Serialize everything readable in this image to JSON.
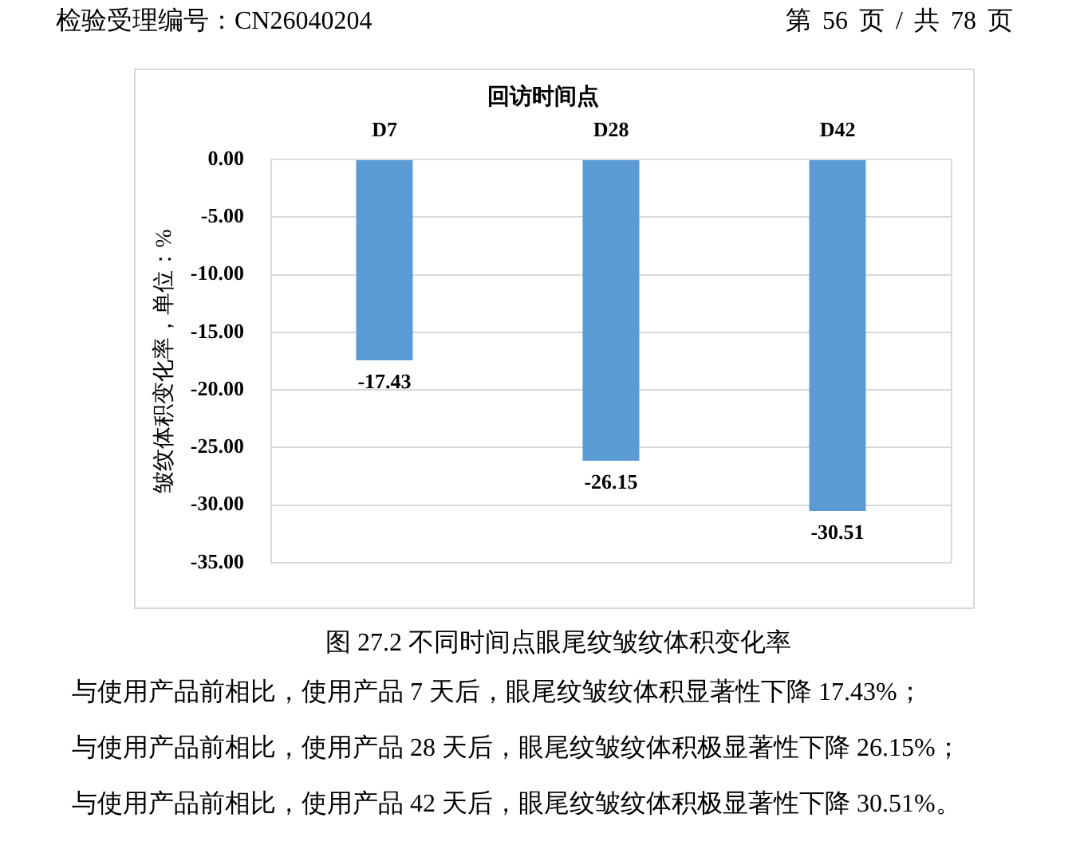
{
  "chart_data": {
    "type": "bar",
    "title": "图 27.2 不同时间点眼尾纹皱纹体积变化率",
    "xlabel": "回访时间点",
    "ylabel": "皱纹体积变化率，单位：%",
    "categories": [
      "D7",
      "D28",
      "D42"
    ],
    "values": [
      -17.43,
      -26.15,
      -30.51
    ],
    "color": "#5b9bd5",
    "ylim": [
      -35,
      0
    ],
    "yticks": [
      {
        "value": 0,
        "label": "0.00"
      },
      {
        "value": -5,
        "label": "-5.00"
      },
      {
        "value": -10,
        "label": "-10.00"
      },
      {
        "value": -15,
        "label": "-15.00"
      },
      {
        "value": -20,
        "label": "-20.00"
      },
      {
        "value": -25,
        "label": "-25.00"
      },
      {
        "value": -30,
        "label": "-30.00"
      },
      {
        "value": -35,
        "label": "-35.00"
      }
    ],
    "grid": "y",
    "data_labels": true,
    "annotations": [
      "检验受理编号：CN26040204",
      "第 56 页 / 共 78 页",
      "与使用产品前相比，使用产品 7 天后，眼尾纹皱纹体积显著性下降 17.43%；",
      "与使用产品前相比，使用产品 28 天后，眼尾纹皱纹体积极显著性下降 26.15%；",
      "与使用产品前相比，使用产品 42 天后，眼尾纹皱纹体积极显著性下降 30.51%。"
    ]
  }
}
